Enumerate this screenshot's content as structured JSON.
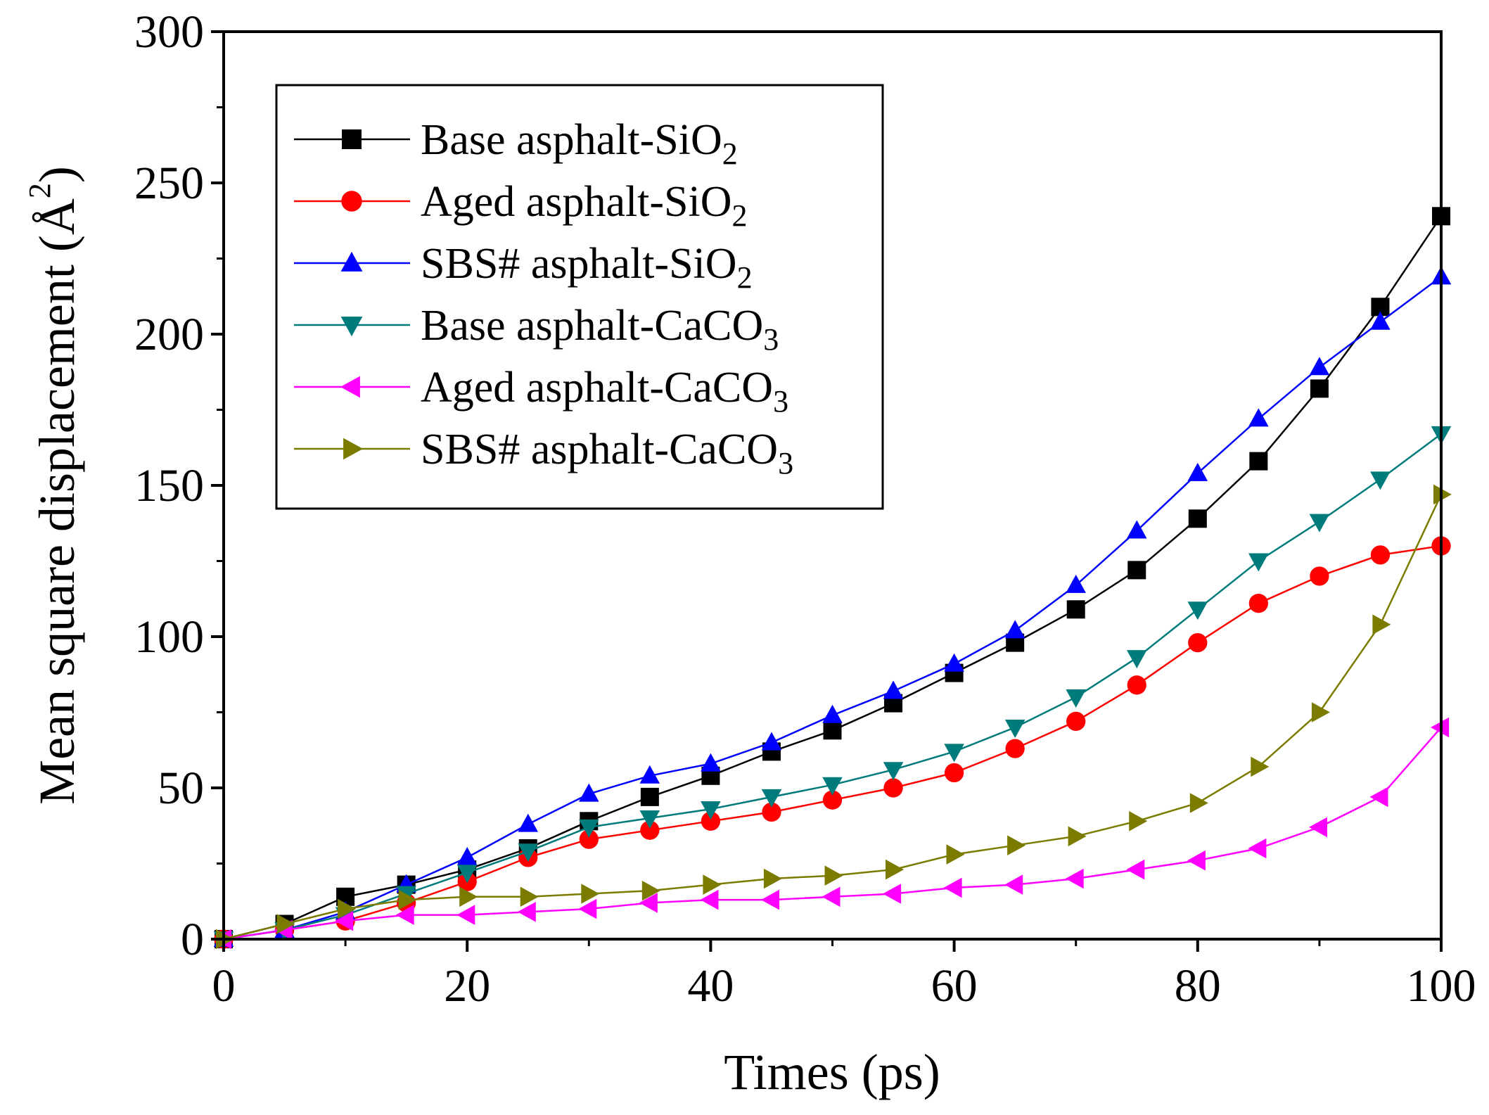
{
  "chart_data": {
    "type": "line",
    "title": "",
    "xlabel": "Times (ps)",
    "ylabel": "Mean square displacement (Å²)",
    "ylabel_parts": {
      "main": "Mean square displacement (Å",
      "sup": "2",
      "close": ")"
    },
    "xlim": [
      0,
      100
    ],
    "ylim": [
      0,
      300
    ],
    "xticks": [
      0,
      20,
      40,
      60,
      80,
      100
    ],
    "yticks": [
      0,
      50,
      100,
      150,
      200,
      250,
      300
    ],
    "grid": false,
    "legend_position": "top-left",
    "x": [
      0,
      5,
      10,
      15,
      20,
      25,
      30,
      35,
      40,
      45,
      50,
      55,
      60,
      65,
      70,
      75,
      80,
      85,
      90,
      95,
      100
    ],
    "series": [
      {
        "name": "Base asphalt-SiO2",
        "label_main": "Base asphalt-SiO",
        "label_sub": "2",
        "color": "#000000",
        "marker": "square",
        "values": [
          0,
          5,
          14,
          18,
          23,
          30,
          39,
          47,
          54,
          62,
          69,
          78,
          88,
          98,
          109,
          122,
          139,
          158,
          182,
          209,
          239
        ]
      },
      {
        "name": "Aged asphalt-SiO2",
        "label_main": "Aged asphalt-SiO",
        "label_sub": "2",
        "color": "#ff0000",
        "marker": "circle",
        "values": [
          0,
          3,
          6,
          12,
          19,
          27,
          33,
          36,
          39,
          42,
          46,
          50,
          55,
          63,
          72,
          84,
          98,
          111,
          120,
          127,
          130
        ]
      },
      {
        "name": "SBS# asphalt-SiO2",
        "label_main": "SBS# asphalt-SiO",
        "label_sub": "2",
        "color": "#0000ff",
        "marker": "triangle-up",
        "values": [
          0,
          3,
          9,
          18,
          27,
          38,
          48,
          54,
          58,
          65,
          74,
          82,
          91,
          102,
          117,
          135,
          154,
          172,
          189,
          204,
          219
        ]
      },
      {
        "name": "Base asphalt-CaCO3",
        "label_main": "Base asphalt-CaCO",
        "label_sub": "3",
        "color": "#007b7b",
        "marker": "triangle-down",
        "values": [
          0,
          3,
          8,
          15,
          22,
          29,
          37,
          40,
          43,
          47,
          51,
          56,
          62,
          70,
          80,
          93,
          109,
          125,
          138,
          152,
          167
        ]
      },
      {
        "name": "Aged asphalt-CaCO3",
        "label_main": "Aged asphalt-CaCO",
        "label_sub": "3",
        "color": "#ff00ff",
        "marker": "triangle-left",
        "values": [
          0,
          3,
          6,
          8,
          8,
          9,
          10,
          12,
          13,
          13,
          14,
          15,
          17,
          18,
          20,
          23,
          26,
          30,
          37,
          47,
          70
        ]
      },
      {
        "name": "SBS# asphalt-CaCO3",
        "label_main": "SBS# asphalt-CaCO",
        "label_sub": "3",
        "color": "#7b7b00",
        "marker": "triangle-right",
        "values": [
          0,
          5,
          10,
          13,
          14,
          14,
          15,
          16,
          18,
          20,
          21,
          23,
          28,
          31,
          34,
          39,
          45,
          57,
          75,
          104,
          147
        ]
      }
    ]
  }
}
